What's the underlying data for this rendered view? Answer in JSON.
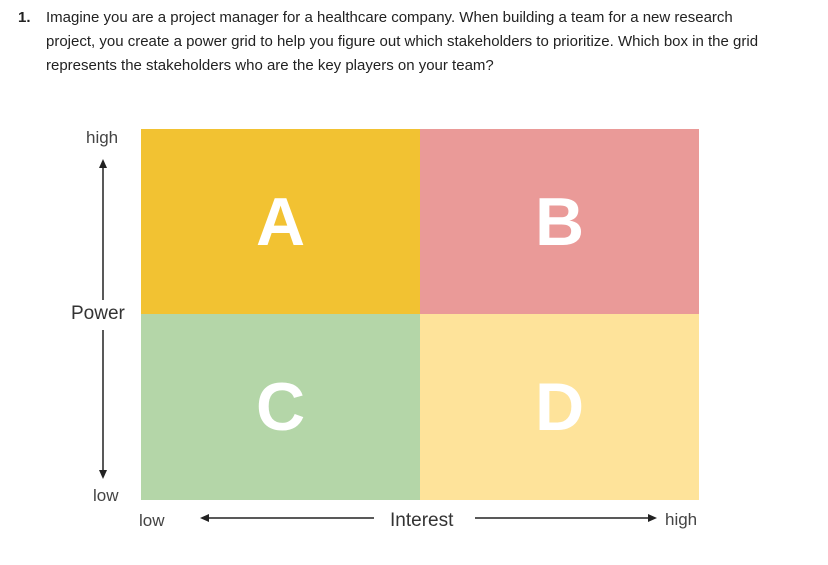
{
  "question": {
    "number": "1.",
    "text": "Imagine you are a project manager for a healthcare company. When building a team for a new research project, you create a power grid to help you figure out which stakeholders to prioritize. Which box in the grid represents the stakeholders who are the key players on your team?"
  },
  "grid": {
    "quadrants": [
      {
        "letter": "A",
        "color": "#f2c232"
      },
      {
        "letter": "B",
        "color": "#ea9a98"
      },
      {
        "letter": "C",
        "color": "#b4d6a8"
      },
      {
        "letter": "D",
        "color": "#fee39a"
      }
    ],
    "y_axis": {
      "title": "Power",
      "high": "high",
      "low": "low"
    },
    "x_axis": {
      "title": "Interest",
      "low": "low",
      "high": "high"
    }
  },
  "colors": {
    "arrow": "#222222",
    "text": "#222222"
  }
}
